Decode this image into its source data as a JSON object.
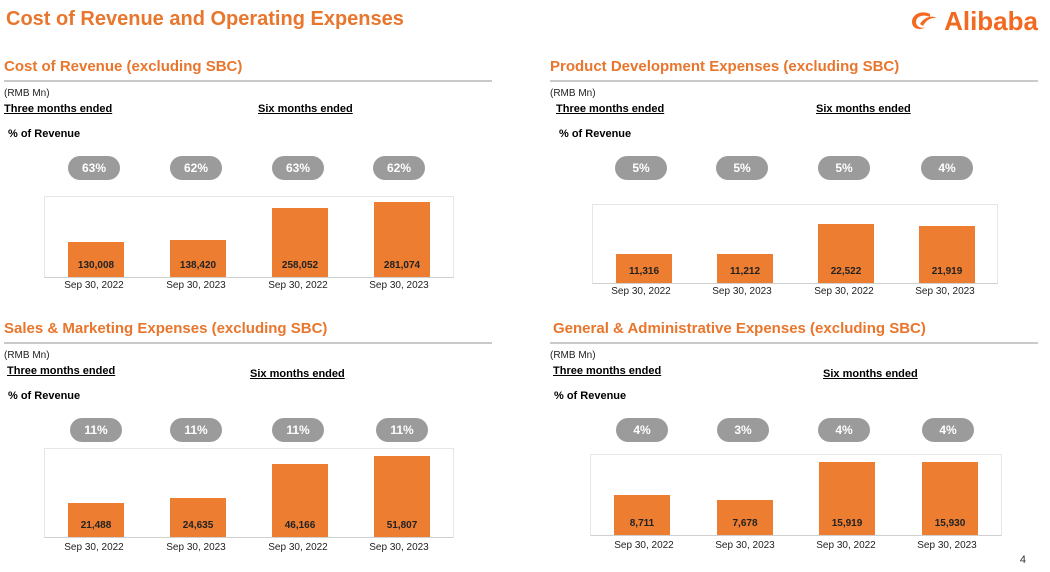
{
  "header": {
    "title": "Cost of Revenue and Operating Expenses",
    "logo_text": "Alibaba"
  },
  "page_number": "4",
  "colors": {
    "accent": "#e8762d",
    "bar": "#ed7d31",
    "pill": "#9b9b9b"
  },
  "chart_data": [
    {
      "type": "bar",
      "title": "Cost of Revenue (excluding SBC)",
      "unit": "(RMB Mn)",
      "three_months_label": "Three months ended",
      "six_months_label": "Six months ended",
      "percent_label": "% of Revenue",
      "categories": [
        "Sep 30, 2022",
        "Sep 30, 2023",
        "Sep 30, 2022",
        "Sep 30, 2023"
      ],
      "values": [
        130008,
        138420,
        258052,
        281074
      ],
      "value_labels": [
        "130,008",
        "138,420",
        "258,052",
        "281,074"
      ],
      "percentages": [
        "63%",
        "62%",
        "63%",
        "62%"
      ],
      "ylim": [
        0,
        300000
      ]
    },
    {
      "type": "bar",
      "title": "Product Development Expenses (excluding SBC)",
      "unit": "(RMB Mn)",
      "three_months_label": "Three months ended",
      "six_months_label": "Six months ended",
      "percent_label": "% of Revenue",
      "categories": [
        "Sep 30, 2022",
        "Sep 30, 2023",
        "Sep 30, 2022",
        "Sep 30, 2023"
      ],
      "values": [
        11316,
        11212,
        22522,
        21919
      ],
      "value_labels": [
        "11,316",
        "11,212",
        "22,522",
        "21,919"
      ],
      "percentages": [
        "5%",
        "5%",
        "5%",
        "4%"
      ],
      "ylim": [
        0,
        30000
      ]
    },
    {
      "type": "bar",
      "title": "Sales & Marketing Expenses (excluding SBC)",
      "unit": "(RMB Mn)",
      "three_months_label": "Three months ended",
      "six_months_label": "Six months ended",
      "percent_label": "% of Revenue",
      "categories": [
        "Sep 30, 2022",
        "Sep 30, 2023",
        "Sep 30, 2022",
        "Sep 30, 2023"
      ],
      "values": [
        21488,
        24635,
        46166,
        51807
      ],
      "value_labels": [
        "21,488",
        "24,635",
        "46,166",
        "51,807"
      ],
      "percentages": [
        "11%",
        "11%",
        "11%",
        "11%"
      ],
      "ylim": [
        0,
        56000
      ]
    },
    {
      "type": "bar",
      "title": "General & Administrative Expenses (excluding SBC)",
      "unit": "(RMB Mn)",
      "three_months_label": "Three months ended",
      "six_months_label": "Six months ended",
      "percent_label": "% of Revenue",
      "categories": [
        "Sep 30, 2022",
        "Sep 30, 2023",
        "Sep 30, 2022",
        "Sep 30, 2023"
      ],
      "values": [
        8711,
        7678,
        15919,
        15930
      ],
      "value_labels": [
        "8,711",
        "7,678",
        "15,919",
        "15,930"
      ],
      "percentages": [
        "4%",
        "3%",
        "4%",
        "4%"
      ],
      "ylim": [
        0,
        17500
      ]
    }
  ]
}
